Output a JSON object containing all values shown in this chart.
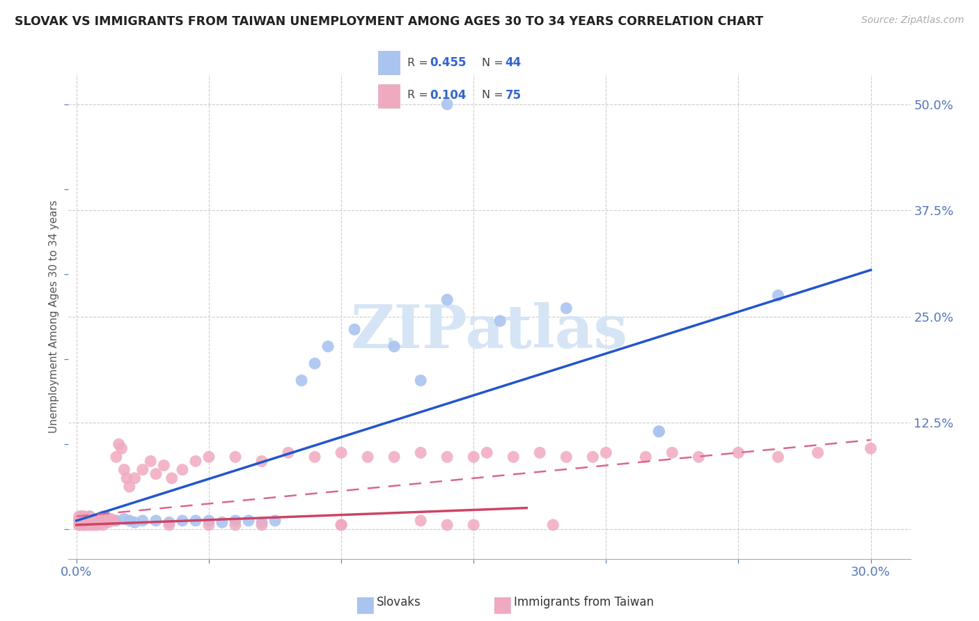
{
  "title": "SLOVAK VS IMMIGRANTS FROM TAIWAN UNEMPLOYMENT AMONG AGES 30 TO 34 YEARS CORRELATION CHART",
  "source": "Source: ZipAtlas.com",
  "ylabel": "Unemployment Among Ages 30 to 34 years",
  "xlim": [
    -0.003,
    0.315
  ],
  "ylim": [
    -0.035,
    0.535
  ],
  "xtick_positions": [
    0.0,
    0.05,
    0.1,
    0.15,
    0.2,
    0.25,
    0.3
  ],
  "xtick_labels": [
    "0.0%",
    "",
    "",
    "",
    "",
    "",
    "30.0%"
  ],
  "ytick_right_positions": [
    0.0,
    0.125,
    0.25,
    0.375,
    0.5
  ],
  "ytick_right_labels": [
    "",
    "12.5%",
    "25.0%",
    "37.5%",
    "50.0%"
  ],
  "slovak_scatter_color": "#aac4f0",
  "taiwan_scatter_color": "#f0aabf",
  "slovak_line_color": "#2255cc",
  "taiwan_line_color_solid": "#cc4466",
  "taiwan_line_color_dash": "#dd6688",
  "background_color": "#ffffff",
  "grid_color": "#cccccc",
  "title_color": "#222222",
  "axis_label_color": "#555555",
  "tick_color": "#5577bb",
  "watermark_text": "ZIPatlas",
  "watermark_color": "#d5e5f5",
  "legend_R_slovak": "0.455",
  "legend_N_slovak": "44",
  "legend_R_taiwan": "0.104",
  "legend_N_taiwan": "75",
  "legend_label_slovak": "Slovaks",
  "legend_label_taiwan": "Immigrants from Taiwan",
  "slovak_x": [
    0.001,
    0.001,
    0.002,
    0.002,
    0.003,
    0.003,
    0.004,
    0.005,
    0.005,
    0.006,
    0.007,
    0.008,
    0.009,
    0.01,
    0.011,
    0.012,
    0.015,
    0.018,
    0.02,
    0.022,
    0.025,
    0.03,
    0.035,
    0.04,
    0.045,
    0.05,
    0.055,
    0.06,
    0.065,
    0.07,
    0.075,
    0.085,
    0.09,
    0.095,
    0.105,
    0.12,
    0.13,
    0.14,
    0.16,
    0.185,
    0.22,
    0.265,
    0.14,
    0.22
  ],
  "slovak_y": [
    0.005,
    0.01,
    0.008,
    0.015,
    0.005,
    0.012,
    0.01,
    0.008,
    0.015,
    0.01,
    0.008,
    0.012,
    0.008,
    0.01,
    0.015,
    0.01,
    0.01,
    0.012,
    0.01,
    0.008,
    0.01,
    0.01,
    0.008,
    0.01,
    0.01,
    0.01,
    0.008,
    0.01,
    0.01,
    0.008,
    0.01,
    0.175,
    0.195,
    0.215,
    0.235,
    0.215,
    0.175,
    0.27,
    0.245,
    0.26,
    0.115,
    0.275,
    0.5,
    0.115
  ],
  "taiwan_x": [
    0.001,
    0.001,
    0.001,
    0.002,
    0.002,
    0.002,
    0.003,
    0.003,
    0.003,
    0.004,
    0.004,
    0.005,
    0.005,
    0.005,
    0.006,
    0.006,
    0.007,
    0.007,
    0.008,
    0.008,
    0.009,
    0.01,
    0.01,
    0.011,
    0.012,
    0.013,
    0.014,
    0.015,
    0.016,
    0.017,
    0.018,
    0.019,
    0.02,
    0.022,
    0.025,
    0.028,
    0.03,
    0.033,
    0.036,
    0.04,
    0.045,
    0.05,
    0.06,
    0.07,
    0.08,
    0.09,
    0.1,
    0.11,
    0.12,
    0.13,
    0.14,
    0.15,
    0.155,
    0.165,
    0.175,
    0.185,
    0.195,
    0.2,
    0.215,
    0.225,
    0.235,
    0.25,
    0.265,
    0.28,
    0.3,
    0.05,
    0.1,
    0.13,
    0.15,
    0.035,
    0.06,
    0.07,
    0.1,
    0.14,
    0.18
  ],
  "taiwan_y": [
    0.005,
    0.01,
    0.015,
    0.005,
    0.01,
    0.015,
    0.005,
    0.01,
    0.015,
    0.005,
    0.01,
    0.005,
    0.01,
    0.015,
    0.005,
    0.01,
    0.005,
    0.01,
    0.005,
    0.01,
    0.008,
    0.005,
    0.015,
    0.01,
    0.008,
    0.012,
    0.01,
    0.085,
    0.1,
    0.095,
    0.07,
    0.06,
    0.05,
    0.06,
    0.07,
    0.08,
    0.065,
    0.075,
    0.06,
    0.07,
    0.08,
    0.085,
    0.085,
    0.08,
    0.09,
    0.085,
    0.09,
    0.085,
    0.085,
    0.09,
    0.085,
    0.085,
    0.09,
    0.085,
    0.09,
    0.085,
    0.085,
    0.09,
    0.085,
    0.09,
    0.085,
    0.09,
    0.085,
    0.09,
    0.095,
    0.005,
    0.005,
    0.01,
    0.005,
    0.005,
    0.005,
    0.005,
    0.005,
    0.005,
    0.005
  ]
}
